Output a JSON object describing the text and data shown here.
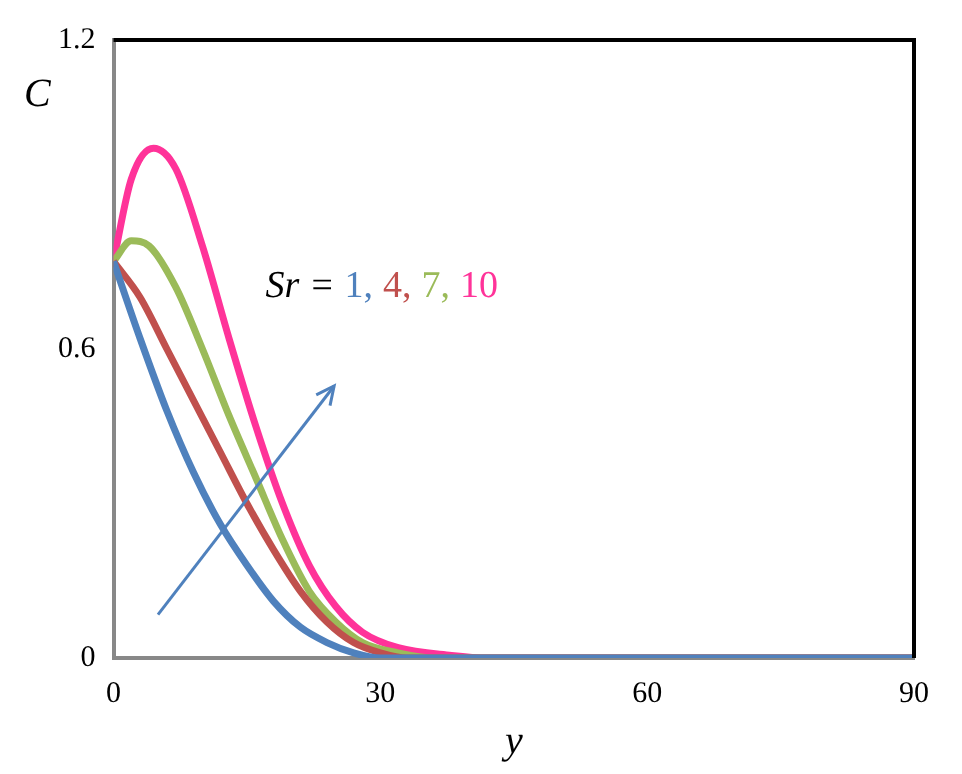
{
  "chart_data": {
    "type": "line",
    "xlabel": "y",
    "ylabel": "C",
    "xlim": [
      0,
      90
    ],
    "xticks": [
      0,
      30,
      60,
      90
    ],
    "ylim": [
      0,
      1.2
    ],
    "yticks": [
      0,
      0.6,
      1.2
    ],
    "grid": false,
    "legend": false,
    "marker": "none",
    "line_style": "solid",
    "annotations": [
      "Sr =",
      "1,",
      "4,",
      "7,",
      "10"
    ],
    "series": [
      {
        "color": "#4f81bd",
        "x": [
          0,
          3,
          6,
          9,
          12,
          15,
          18,
          21,
          24,
          27,
          30,
          35,
          90
        ],
        "values": [
          0.77,
          0.62,
          0.48,
          0.36,
          0.26,
          0.18,
          0.11,
          0.06,
          0.03,
          0.01,
          0,
          0,
          0
        ]
      },
      {
        "color": "#c0504d",
        "x": [
          0,
          3,
          6,
          9,
          12,
          15,
          18,
          21,
          24,
          27,
          30,
          33,
          90
        ],
        "values": [
          0.77,
          0.7,
          0.6,
          0.5,
          0.4,
          0.3,
          0.21,
          0.13,
          0.07,
          0.03,
          0.01,
          0,
          0
        ]
      },
      {
        "color": "#9bbb59",
        "x": [
          0,
          2,
          4,
          7,
          10,
          13,
          16,
          19,
          22,
          25,
          28,
          32,
          36,
          90
        ],
        "values": [
          0.77,
          0.81,
          0.8,
          0.72,
          0.6,
          0.47,
          0.35,
          0.23,
          0.13,
          0.07,
          0.03,
          0.01,
          0,
          0
        ]
      },
      {
        "color": "#ff3399",
        "x": [
          0,
          2,
          4.5,
          7,
          10,
          13,
          16,
          19,
          22,
          25,
          28,
          32,
          38,
          42,
          90
        ],
        "values": [
          0.77,
          0.93,
          0.99,
          0.95,
          0.8,
          0.62,
          0.45,
          0.3,
          0.18,
          0.1,
          0.05,
          0.02,
          0.005,
          0,
          0
        ]
      }
    ]
  }
}
